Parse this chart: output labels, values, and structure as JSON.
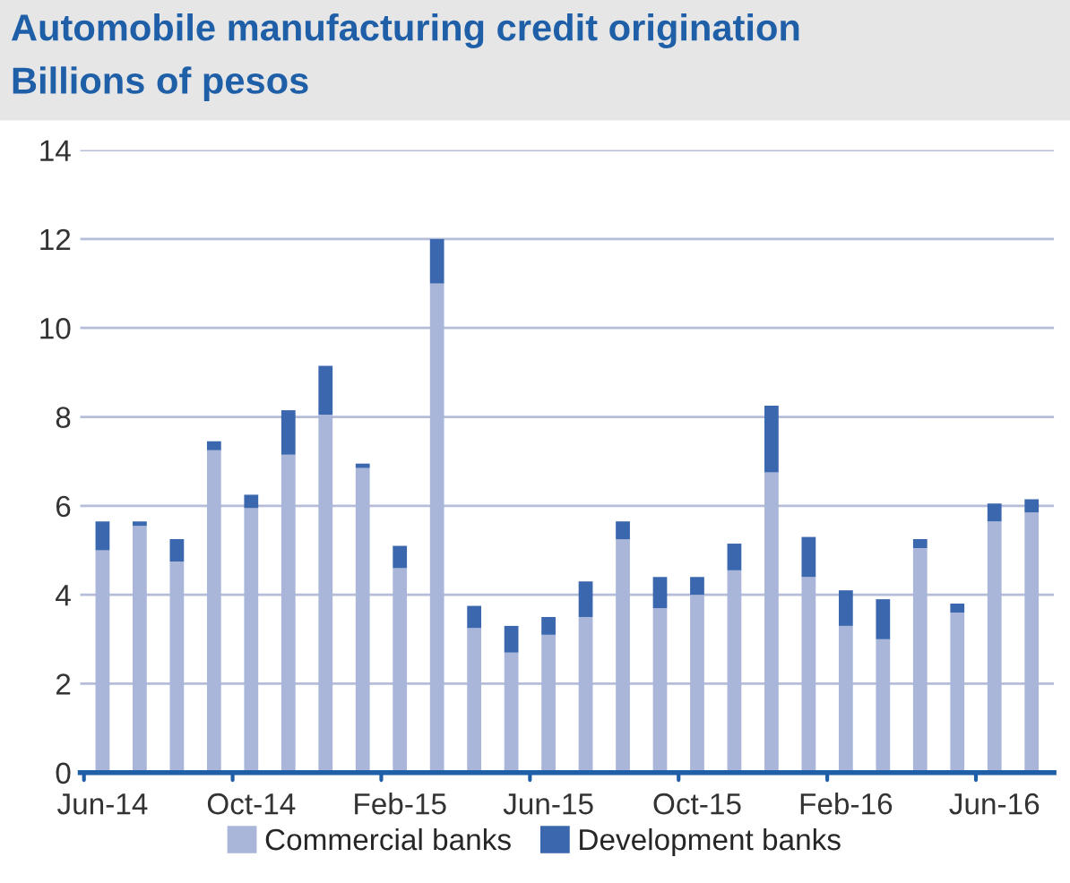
{
  "chart_data": {
    "type": "bar",
    "stacked": true,
    "title": "Automobile manufacturing credit origination",
    "subtitle": "Billions of pesos",
    "categories": [
      "Jun-14",
      null,
      null,
      null,
      "Oct-14",
      null,
      null,
      null,
      "Feb-15",
      null,
      null,
      null,
      "Jun-15",
      null,
      null,
      null,
      "Oct-15",
      null,
      null,
      null,
      "Feb-16",
      null,
      null,
      null,
      "Jun-16",
      null
    ],
    "series": [
      {
        "name": "Commercial banks",
        "color": "#a9b6d9",
        "values": [
          5.0,
          5.55,
          4.75,
          7.25,
          5.95,
          7.15,
          8.05,
          6.85,
          4.6,
          11.0,
          3.25,
          2.7,
          3.1,
          3.5,
          5.25,
          3.7,
          4.0,
          4.55,
          6.75,
          4.4,
          3.3,
          3.0,
          5.05,
          3.6,
          5.65,
          5.85
        ]
      },
      {
        "name": "Development banks",
        "color": "#3a67ad",
        "values": [
          0.65,
          0.1,
          0.5,
          0.2,
          0.3,
          1.0,
          1.1,
          0.1,
          0.5,
          1.0,
          0.5,
          0.6,
          0.4,
          0.8,
          0.4,
          0.7,
          0.4,
          0.6,
          1.5,
          0.9,
          0.8,
          0.9,
          0.2,
          0.2,
          0.4,
          0.3
        ]
      }
    ],
    "ylim": [
      0,
      14
    ],
    "yticks": [
      0,
      2,
      4,
      6,
      8,
      10,
      12,
      14
    ],
    "grid": "y",
    "legend": "bottom"
  }
}
